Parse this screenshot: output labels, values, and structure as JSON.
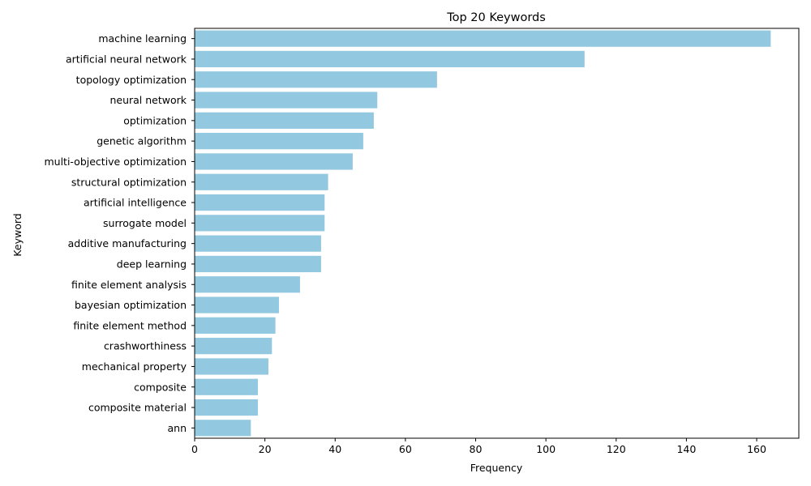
{
  "chart_data": {
    "type": "bar",
    "orientation": "horizontal",
    "title": "Top 20 Keywords",
    "xlabel": "Frequency",
    "ylabel": "Keyword",
    "xlim": [
      0,
      172
    ],
    "xticks": [
      0,
      20,
      40,
      60,
      80,
      100,
      120,
      140,
      160
    ],
    "grid": false,
    "bar_color": "#93c9e0",
    "categories": [
      "machine learning",
      "artificial neural network",
      "topology optimization",
      "neural network",
      "optimization",
      "genetic algorithm",
      "multi-objective optimization",
      "structural optimization",
      "artificial intelligence",
      "surrogate model",
      "additive manufacturing",
      "deep learning",
      "finite element analysis",
      "bayesian optimization",
      "finite element method",
      "crashworthiness",
      "mechanical property",
      "composite",
      "composite material",
      "ann"
    ],
    "values": [
      164,
      111,
      69,
      52,
      51,
      48,
      45,
      38,
      37,
      37,
      36,
      36,
      30,
      24,
      23,
      22,
      21,
      18,
      18,
      16
    ]
  }
}
